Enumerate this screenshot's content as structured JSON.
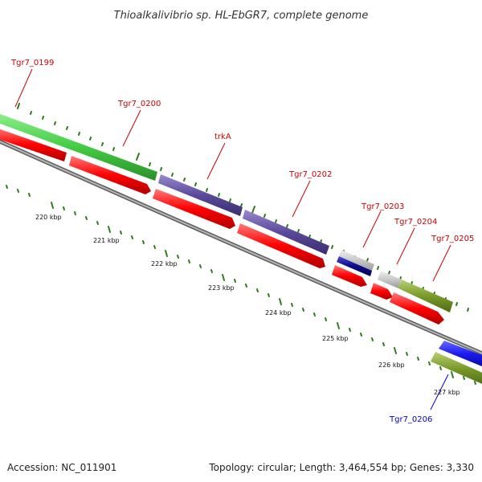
{
  "title": "Thioalkalivibrio sp. HL-EbGR7, complete genome",
  "footer": {
    "accession": "Accession: NC_011901",
    "summary": "Topology: circular; Length: 3,464,554 bp; Genes: 3,330"
  },
  "colors": {
    "forward_label": "#cc0000",
    "reverse_label": "#0000cc",
    "backbone": "#808080",
    "tick": "#2e7d1e",
    "cds": "#ff0000"
  },
  "genes": [
    {
      "name": "Tgr7_0199",
      "strand": "forward",
      "color": "#44cc44"
    },
    {
      "name": "Tgr7_0200",
      "strand": "forward",
      "color": "#44cc44"
    },
    {
      "name": "trkA",
      "strand": "forward",
      "color": "#5a4a9a"
    },
    {
      "name": "Tgr7_0202",
      "strand": "forward",
      "color": "#5a4a9a"
    },
    {
      "name": "Tgr7_0203",
      "strand": "forward",
      "color": "#0a0a8a"
    },
    {
      "name": "Tgr7_0204",
      "strand": "forward",
      "color": "#c8c8c8"
    },
    {
      "name": "Tgr7_0205",
      "strand": "forward",
      "color": "#7a9a2a"
    },
    {
      "name": "Tgr7_0206",
      "strand": "reverse",
      "color": "#7a9a2a"
    }
  ],
  "scale_labels": [
    "220 kbp",
    "221 kbp",
    "222 kbp",
    "223 kbp",
    "224 kbp",
    "225 kbp",
    "226 kbp",
    "227 kbp"
  ]
}
